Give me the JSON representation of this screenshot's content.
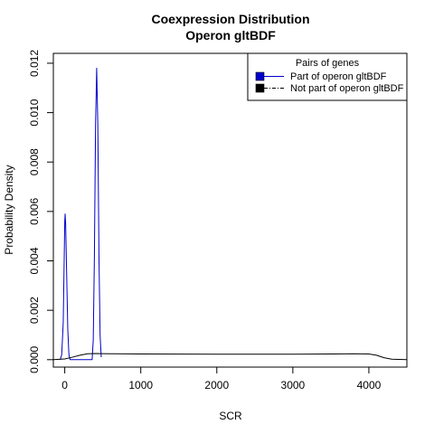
{
  "chart_data": {
    "type": "line",
    "title": "Coexpression Distribution",
    "subtitle": "Operon gltBDF",
    "xlabel": "SCR",
    "ylabel": "Probability Density",
    "xlim": [
      -150,
      4500
    ],
    "ylim": [
      -0.0003,
      0.0124
    ],
    "x_ticks": [
      0,
      1000,
      2000,
      3000,
      4000
    ],
    "y_ticks": [
      0.0,
      0.002,
      0.004,
      0.006,
      0.008,
      0.01,
      0.012
    ],
    "x_tick_labels": [
      "0",
      "1000",
      "2000",
      "3000",
      "4000"
    ],
    "y_tick_labels": [
      "0.000",
      "0.002",
      "0.004",
      "0.006",
      "0.008",
      "0.010",
      "0.012"
    ],
    "grid": false,
    "legend": {
      "title": "Pairs of genes",
      "position": "top-right",
      "entries": [
        {
          "label": "Part of operon gltBDF",
          "color": "#0000cc",
          "style": "solid"
        },
        {
          "label": "Not part of operon gltBDF",
          "color": "#000000",
          "style": "dashdot"
        }
      ]
    },
    "series": [
      {
        "color": "#0000cc",
        "points": [
          [
            -60,
            0.0
          ],
          [
            -40,
            0.0002
          ],
          [
            -20,
            0.0015
          ],
          [
            -10,
            0.0035
          ],
          [
            0,
            0.0056
          ],
          [
            5,
            0.0059
          ],
          [
            12,
            0.0055
          ],
          [
            25,
            0.0035
          ],
          [
            40,
            0.0012
          ],
          [
            55,
            0.0002
          ],
          [
            70,
            0.0
          ],
          [
            360,
            0.0
          ],
          [
            375,
            0.0008
          ],
          [
            390,
            0.0042
          ],
          [
            405,
            0.0095
          ],
          [
            420,
            0.0118
          ],
          [
            435,
            0.0095
          ],
          [
            450,
            0.0042
          ],
          [
            465,
            0.001
          ],
          [
            480,
            0.0001
          ]
        ]
      },
      {
        "color": "#000000",
        "points": [
          [
            -150,
            0.0
          ],
          [
            0,
            3e-05
          ],
          [
            100,
            0.0001
          ],
          [
            200,
            0.00018
          ],
          [
            300,
            0.00024
          ],
          [
            400,
            0.00025
          ],
          [
            600,
            0.00024
          ],
          [
            1000,
            0.00023
          ],
          [
            2000,
            0.00022
          ],
          [
            3000,
            0.00022
          ],
          [
            3500,
            0.00023
          ],
          [
            3800,
            0.00024
          ],
          [
            4000,
            0.00023
          ],
          [
            4100,
            0.00018
          ],
          [
            4200,
            8e-05
          ],
          [
            4300,
            2e-05
          ],
          [
            4500,
            0.0
          ]
        ]
      }
    ]
  }
}
